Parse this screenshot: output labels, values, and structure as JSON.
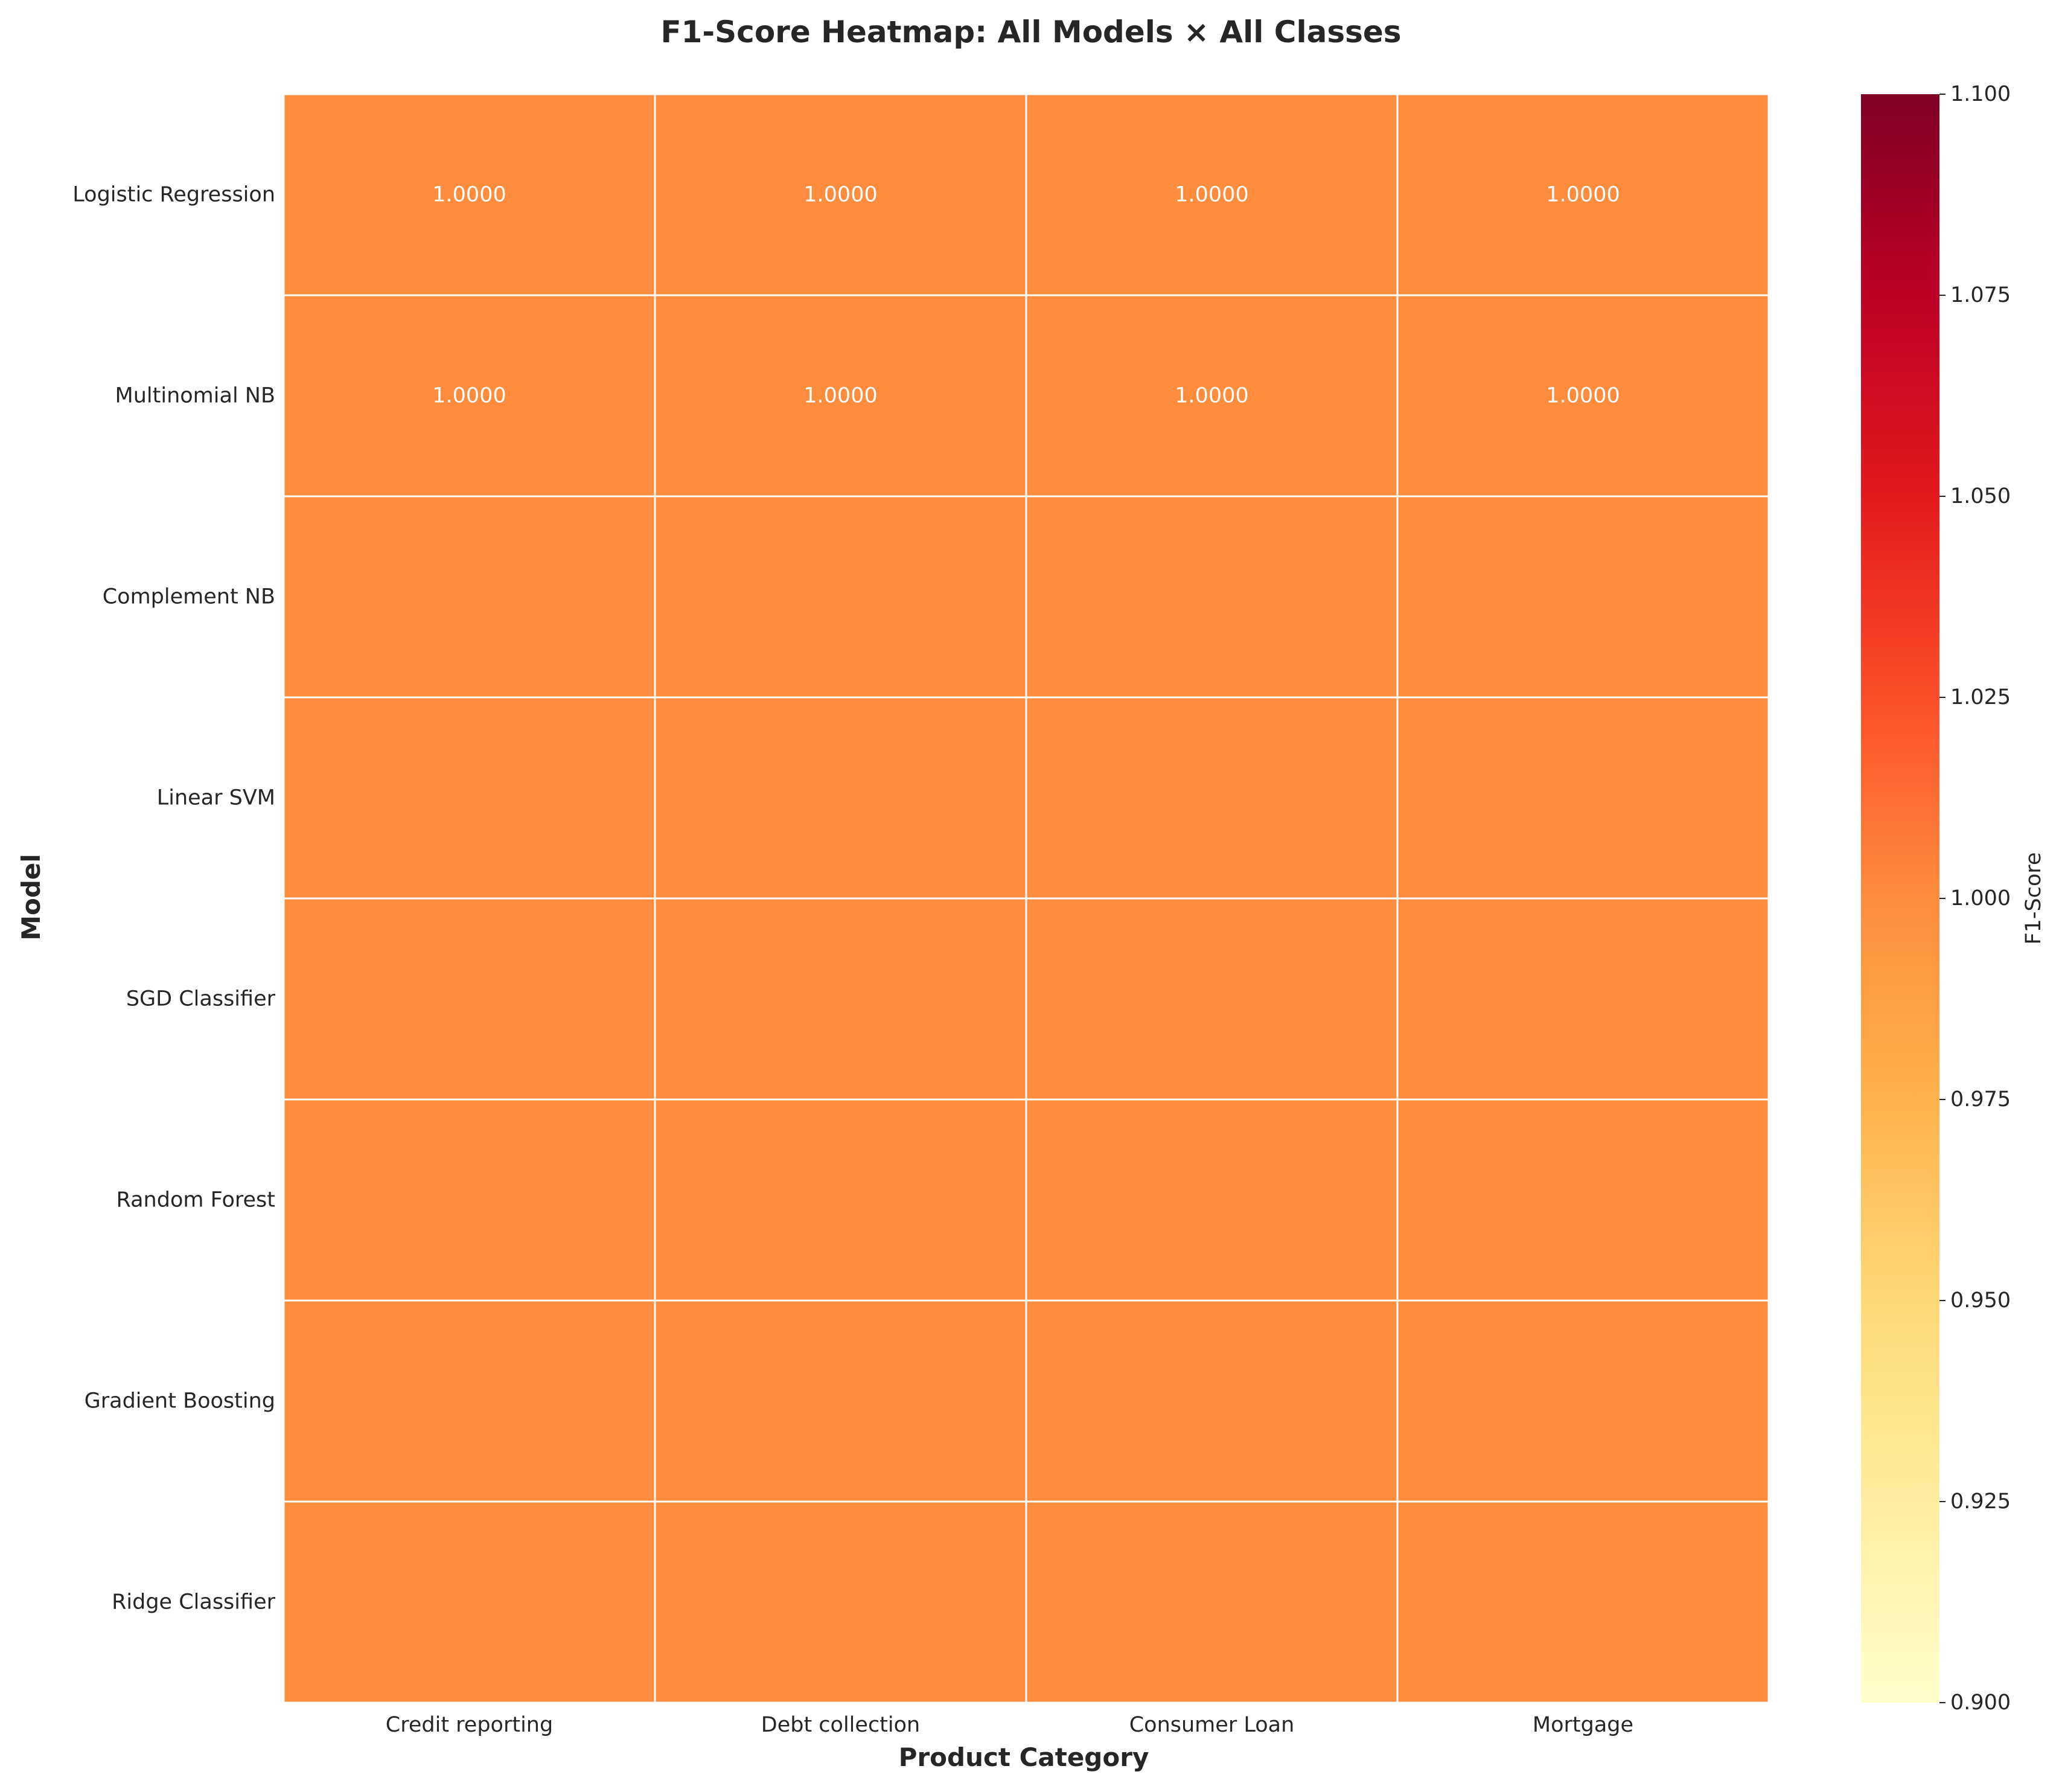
{
  "chart_data": {
    "type": "heatmap",
    "title": "F1-Score Heatmap: All Models × All Classes",
    "xlabel": "Product Category",
    "ylabel": "Model",
    "x_categories": [
      "Credit reporting",
      "Debt collection",
      "Consumer Loan",
      "Mortgage"
    ],
    "y_categories": [
      "Logistic Regression",
      "Multinomial NB",
      "Complement NB",
      "Linear SVM",
      "SGD Classifier",
      "Random Forest",
      "Gradient Boosting",
      "Ridge Classifier"
    ],
    "values": [
      [
        1.0,
        1.0,
        1.0,
        1.0
      ],
      [
        1.0,
        1.0,
        1.0,
        1.0
      ],
      [
        1.0,
        1.0,
        1.0,
        1.0
      ],
      [
        1.0,
        1.0,
        1.0,
        1.0
      ],
      [
        1.0,
        1.0,
        1.0,
        1.0
      ],
      [
        1.0,
        1.0,
        1.0,
        1.0
      ],
      [
        1.0,
        1.0,
        1.0,
        1.0
      ],
      [
        1.0,
        1.0,
        1.0,
        1.0
      ]
    ],
    "annotations": [
      [
        "1.0000",
        "1.0000",
        "1.0000",
        "1.0000"
      ],
      [
        "1.0000",
        "1.0000",
        "1.0000",
        "1.0000"
      ],
      [
        "",
        "",
        "",
        ""
      ],
      [
        "",
        "",
        "",
        ""
      ],
      [
        "",
        "",
        "",
        ""
      ],
      [
        "",
        "",
        "",
        ""
      ],
      [
        "",
        "",
        "",
        ""
      ],
      [
        "",
        "",
        "",
        ""
      ]
    ],
    "colorbar": {
      "label": "F1-Score",
      "range": [
        0.9,
        1.1
      ],
      "ticks": [
        "0.900",
        "0.925",
        "0.950",
        "0.975",
        "1.000",
        "1.025",
        "1.050",
        "1.075",
        "1.100"
      ],
      "colormap": "YlOrRd",
      "colormap_stops": [
        "#ffffcc",
        "#ffeda0",
        "#fed976",
        "#feb24c",
        "#fd8d3c",
        "#fc4e2a",
        "#e31a1c",
        "#bd0026",
        "#800026"
      ]
    },
    "cell_color": "#fd8d3c",
    "grid_line_color": "#ffffff"
  }
}
